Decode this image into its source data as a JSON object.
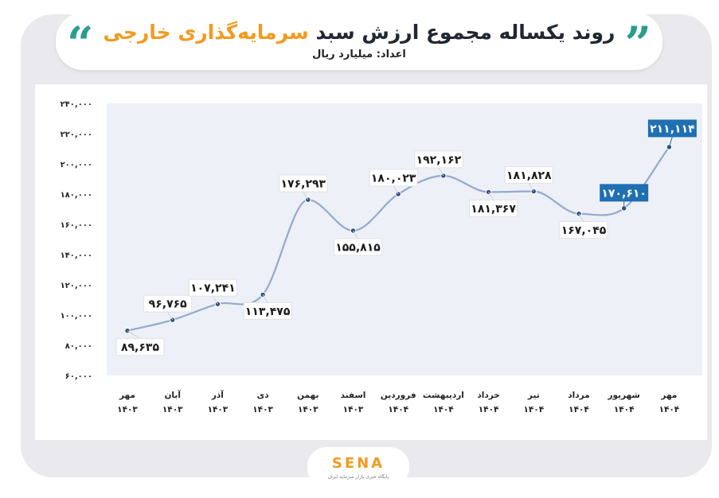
{
  "header": {
    "title_part1": "روند یکساله مجموع ارزش سبد",
    "title_part2": "سرمایه‌گذاری خارجی",
    "subtitle": "اعداد: میلیارد ریال"
  },
  "logo": {
    "name": "SENA",
    "tagline": "پایگاه خبری بازار سرمایه ایران"
  },
  "colors": {
    "accent": "#f39a1e",
    "line": "#93a9cc",
    "highlight": "#1f6fb2",
    "quote": "#2a9d8f"
  },
  "chart_data": {
    "type": "line",
    "title": "روند یکساله مجموع ارزش سبد سرمایه‌گذاری خارجی",
    "subtitle": "اعداد: میلیارد ریال",
    "categories": [
      "مهر|۱۴۰۳",
      "آبان|۱۴۰۳",
      "آذر|۱۴۰۳",
      "دی|۱۴۰۳",
      "بهمن|۱۴۰۳",
      "اسفند|۱۴۰۳",
      "فروردین|۱۴۰۴",
      "اردیبهشت|۱۴۰۴",
      "خرداد|۱۴۰۴",
      "تیر|۱۴۰۴",
      "مرداد|۱۴۰۴",
      "شهریور|۱۴۰۴",
      "مهر|۱۴۰۴"
    ],
    "values": [
      89635,
      96765,
      107241,
      113475,
      176293,
      155815,
      180023,
      192162,
      181367,
      181828,
      167045,
      170610,
      211114
    ],
    "value_labels": [
      "۸۹,۶۳۵",
      "۹۶,۷۶۵",
      "۱۰۷,۲۴۱",
      "۱۱۳,۴۷۵",
      "۱۷۶,۲۹۳",
      "۱۵۵,۸۱۵",
      "۱۸۰,۰۲۳",
      "۱۹۲,۱۶۲",
      "۱۸۱,۳۶۷",
      "۱۸۱,۸۲۸",
      "۱۶۷,۰۴۵",
      "۱۷۰,۶۱۰",
      "۲۱۱,۱۱۴"
    ],
    "label_position": [
      "below",
      "above",
      "above",
      "below",
      "above",
      "below",
      "above",
      "above",
      "below",
      "above",
      "below",
      "above",
      "above"
    ],
    "highlighted": [
      false,
      false,
      false,
      false,
      false,
      false,
      false,
      false,
      false,
      false,
      false,
      true,
      true
    ],
    "y_ticks": [
      60000,
      80000,
      100000,
      120000,
      140000,
      160000,
      180000,
      200000,
      220000,
      240000
    ],
    "y_tick_labels": [
      "۶۰,۰۰۰",
      "۸۰,۰۰۰",
      "۱۰۰,۰۰۰",
      "۱۲۰,۰۰۰",
      "۱۴۰,۰۰۰",
      "۱۶۰,۰۰۰",
      "۱۸۰,۰۰۰",
      "۲۰۰,۰۰۰",
      "۲۲۰,۰۰۰",
      "۲۴۰,۰۰۰"
    ],
    "ylim": [
      60000,
      240000
    ],
    "grid": false,
    "legend": "none"
  }
}
